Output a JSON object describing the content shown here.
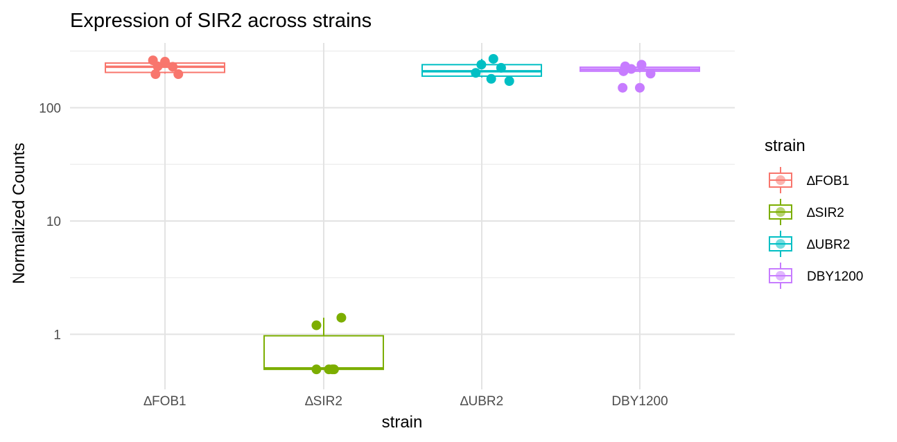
{
  "chart_data": {
    "type": "box",
    "title": "Expression of SIR2 across strains",
    "xlabel": "strain",
    "ylabel": "Normalized Counts",
    "yscale": "log10",
    "ylim": [
      0.42,
      400
    ],
    "y_ticks": [
      1,
      10,
      100
    ],
    "y_tick_labels": [
      "1",
      "10",
      "100"
    ],
    "grid": true,
    "categories": [
      "∆FOB1",
      "∆SIR2",
      "∆UBR2",
      "DBY1200"
    ],
    "legend": {
      "title": "strain",
      "position": "right",
      "entries": [
        "∆FOB1",
        "∆SIR2",
        "∆UBR2",
        "DBY1200"
      ]
    },
    "colors": [
      "#F8766D",
      "#7CAE00",
      "#00BFC4",
      "#C77CFF"
    ],
    "series": [
      {
        "name": "∆FOB1",
        "box": {
          "whisker_low": 200,
          "q1": 205,
          "median": 230,
          "q3": 248,
          "whisker_high": 255
        },
        "points": [
          {
            "x_jitter": -0.28,
            "y": 262
          },
          {
            "x_jitter": -0.17,
            "y": 232
          },
          {
            "x_jitter": 0.0,
            "y": 255
          },
          {
            "x_jitter": -0.22,
            "y": 198
          },
          {
            "x_jitter": 0.31,
            "y": 198
          },
          {
            "x_jitter": 0.18,
            "y": 230
          }
        ]
      },
      {
        "name": "∆SIR2",
        "box": {
          "whisker_low": 0.49,
          "q1": 0.49,
          "median": 0.5,
          "q3": 0.97,
          "whisker_high": 1.4
        },
        "points": [
          {
            "x_jitter": -0.17,
            "y": 1.2
          },
          {
            "x_jitter": 0.41,
            "y": 1.4
          },
          {
            "x_jitter": -0.17,
            "y": 0.49
          },
          {
            "x_jitter": 0.12,
            "y": 0.49
          },
          {
            "x_jitter": 0.2,
            "y": 0.49
          },
          {
            "x_jitter": 0.24,
            "y": 0.49
          }
        ]
      },
      {
        "name": "∆UBR2",
        "box": {
          "whisker_low": 185,
          "q1": 190,
          "median": 210,
          "q3": 240,
          "whisker_high": 270
        },
        "points": [
          {
            "x_jitter": -0.01,
            "y": 240
          },
          {
            "x_jitter": 0.27,
            "y": 270
          },
          {
            "x_jitter": 0.45,
            "y": 225
          },
          {
            "x_jitter": 0.22,
            "y": 180
          },
          {
            "x_jitter": 0.64,
            "y": 172
          },
          {
            "x_jitter": -0.14,
            "y": 203
          }
        ]
      },
      {
        "name": "DBY1200",
        "box": {
          "whisker_low": 205,
          "q1": 210,
          "median": 218,
          "q3": 228,
          "whisker_high": 232
        },
        "points": [
          {
            "x_jitter": -0.4,
            "y": 150
          },
          {
            "x_jitter": 0.0,
            "y": 150
          },
          {
            "x_jitter": -0.34,
            "y": 232
          },
          {
            "x_jitter": -0.2,
            "y": 220
          },
          {
            "x_jitter": 0.04,
            "y": 240
          },
          {
            "x_jitter": 0.25,
            "y": 200
          },
          {
            "x_jitter": -0.38,
            "y": 210
          }
        ]
      }
    ]
  }
}
